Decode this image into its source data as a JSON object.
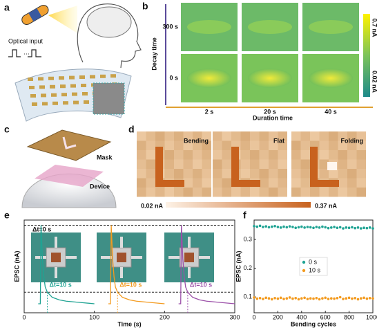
{
  "panel_labels": [
    "a",
    "b",
    "c",
    "d",
    "e",
    "f"
  ],
  "panel_a": {
    "optical_input": "Optical input"
  },
  "panel_b": {
    "y_label": "Decay time",
    "x_label": "Duration time",
    "rows": [
      "300 s",
      "0 s"
    ],
    "columns": [
      "2 s",
      "20 s",
      "40 s"
    ],
    "colorbar": [
      "0.7 nA",
      "0.02 nA"
    ]
  },
  "panel_c": {
    "top": "Mask",
    "bottom": "Device"
  },
  "panel_d": {
    "maps": [
      "Bending",
      "Flat",
      "Folding"
    ],
    "colorbar": [
      "0.02 nA",
      "0.37 nA"
    ]
  },
  "chart_data": [
    {
      "type": "line",
      "xlabel": "Time (s)",
      "ylabel": "EPSC (nA)",
      "xlim": [
        0,
        300
      ],
      "xticks": [
        0,
        100,
        200,
        300
      ],
      "ylim": [
        0.01,
        0.37
      ],
      "hlines": [
        0.35,
        0.09
      ],
      "annotations": [
        "Δt=0 s",
        "Δt=10 s",
        "Δt=10 s",
        "Δt=10 s"
      ],
      "series": [
        {
          "color": "#1fa393",
          "x": [
            20,
            23,
            24,
            26,
            28,
            30,
            33,
            40,
            50,
            60,
            80,
            100
          ],
          "values": [
            0.045,
            0.045,
            0.35,
            0.22,
            0.15,
            0.11,
            0.09,
            0.07,
            0.06,
            0.055,
            0.05,
            0.045
          ]
        },
        {
          "color": "#f39a1e",
          "x": [
            120,
            123,
            124,
            126,
            128,
            130,
            133,
            140,
            150,
            160,
            180,
            200
          ],
          "values": [
            0.045,
            0.045,
            0.35,
            0.22,
            0.15,
            0.11,
            0.09,
            0.07,
            0.06,
            0.055,
            0.05,
            0.045
          ]
        },
        {
          "color": "#9b4fa8",
          "x": [
            220,
            223,
            224,
            226,
            228,
            230,
            233,
            240,
            250,
            260,
            280,
            300
          ],
          "values": [
            0.045,
            0.045,
            0.35,
            0.22,
            0.15,
            0.11,
            0.09,
            0.07,
            0.06,
            0.055,
            0.05,
            0.045
          ]
        }
      ]
    },
    {
      "type": "scatter",
      "xlabel": "Bending cycles",
      "ylabel": "EPSC (nA)",
      "xlim": [
        0,
        1000
      ],
      "xticks": [
        0,
        200,
        400,
        600,
        800,
        1000
      ],
      "ylim": [
        0.045,
        0.367
      ],
      "yticks": [
        0.1,
        0.2,
        0.3
      ],
      "legend": "center",
      "x": [
        0,
        25,
        50,
        75,
        100,
        125,
        150,
        175,
        200,
        225,
        250,
        275,
        300,
        325,
        350,
        375,
        400,
        425,
        450,
        475,
        500,
        525,
        550,
        575,
        600,
        625,
        650,
        675,
        700,
        725,
        750,
        775,
        800,
        825,
        850,
        875,
        900,
        925,
        950,
        975,
        1000
      ],
      "series": [
        {
          "name": "0 s",
          "color": "#1fa393",
          "values": [
            0.346,
            0.344,
            0.347,
            0.343,
            0.345,
            0.342,
            0.344,
            0.346,
            0.343,
            0.341,
            0.344,
            0.342,
            0.345,
            0.343,
            0.34,
            0.342,
            0.344,
            0.341,
            0.343,
            0.342,
            0.34,
            0.343,
            0.341,
            0.344,
            0.342,
            0.339,
            0.341,
            0.343,
            0.34,
            0.342,
            0.338,
            0.341,
            0.34,
            0.342,
            0.339,
            0.341,
            0.338,
            0.34,
            0.339,
            0.341,
            0.338
          ]
        },
        {
          "name": "10 s",
          "color": "#f39a1e",
          "values": [
            0.098,
            0.094,
            0.096,
            0.093,
            0.097,
            0.095,
            0.092,
            0.096,
            0.094,
            0.097,
            0.093,
            0.095,
            0.098,
            0.094,
            0.096,
            0.092,
            0.095,
            0.097,
            0.093,
            0.095,
            0.094,
            0.096,
            0.092,
            0.095,
            0.097,
            0.093,
            0.095,
            0.094,
            0.096,
            0.099,
            0.093,
            0.095,
            0.097,
            0.094,
            0.096,
            0.092,
            0.095,
            0.097,
            0.094,
            0.096,
            0.095
          ]
        }
      ]
    }
  ]
}
